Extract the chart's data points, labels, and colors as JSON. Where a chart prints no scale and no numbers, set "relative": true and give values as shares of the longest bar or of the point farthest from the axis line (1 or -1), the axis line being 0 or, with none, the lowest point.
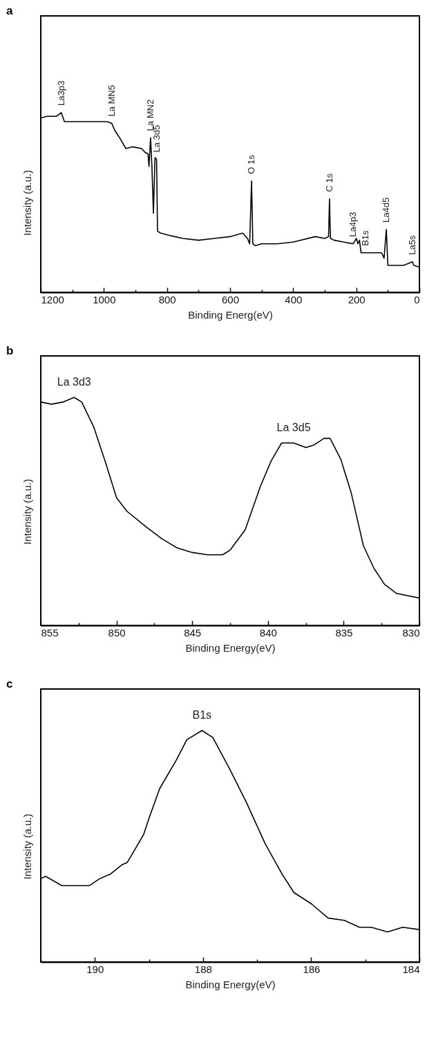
{
  "chart_data": [
    {
      "type": "line",
      "title": "a",
      "xlabel": "Binding Energ(eV)",
      "ylabel": "Intensity (a.u.)",
      "relative": true,
      "xlim": [
        1200,
        0
      ],
      "xticks": [
        1200,
        {
          "value": 1100,
          "label": null
        },
        1000,
        {
          "value": 900,
          "label": null
        },
        800,
        {
          "value": 700,
          "label": null
        },
        600,
        {
          "value": 500,
          "label": null
        },
        400,
        {
          "value": 300,
          "label": null
        },
        200,
        {
          "value": 100,
          "label": null
        },
        0
      ],
      "x": [
        1200,
        1180,
        1150,
        1135,
        1125,
        1100,
        1050,
        1010,
        990,
        975,
        965,
        950,
        930,
        910,
        880,
        870,
        860,
        857,
        852,
        848,
        843,
        838,
        833,
        830,
        820,
        800,
        750,
        700,
        650,
        600,
        560,
        545,
        538,
        532,
        528,
        520,
        500,
        450,
        400,
        330,
        300,
        288,
        285,
        282,
        270,
        240,
        210,
        200,
        195,
        190,
        185,
        170,
        150,
        120,
        112,
        105,
        100,
        80,
        50,
        22,
        18,
        0
      ],
      "series": [
        {
          "color": "#000000",
          "values": [
            0.97,
            0.98,
            0.98,
            1.0,
            0.95,
            0.95,
            0.95,
            0.95,
            0.95,
            0.94,
            0.9,
            0.86,
            0.8,
            0.81,
            0.8,
            0.78,
            0.77,
            0.7,
            0.86,
            0.71,
            0.44,
            0.75,
            0.74,
            0.34,
            0.33,
            0.32,
            0.3,
            0.29,
            0.3,
            0.31,
            0.33,
            0.3,
            0.27,
            0.62,
            0.27,
            0.26,
            0.27,
            0.27,
            0.28,
            0.31,
            0.3,
            0.31,
            0.52,
            0.3,
            0.29,
            0.28,
            0.27,
            0.3,
            0.27,
            0.29,
            0.22,
            0.22,
            0.22,
            0.22,
            0.19,
            0.35,
            0.15,
            0.15,
            0.15,
            0.17,
            0.15,
            0.14
          ]
        }
      ],
      "annotations": [
        {
          "text": "La3p3",
          "x": 1135,
          "y": 1.0
        },
        {
          "text": "La MN5",
          "x": 975,
          "y": 0.94
        },
        {
          "text": "La MN2",
          "x": 852,
          "y": 0.86
        },
        {
          "text": "La 3d5",
          "x": 833,
          "y": 0.74
        },
        {
          "text": "O 1s",
          "x": 532,
          "y": 0.62
        },
        {
          "text": "C 1s",
          "x": 285,
          "y": 0.52
        },
        {
          "text": "La4p3",
          "x": 210,
          "y": 0.27
        },
        {
          "text": "B1s",
          "x": 170,
          "y": 0.22
        },
        {
          "text": "La4d5",
          "x": 105,
          "y": 0.35
        },
        {
          "text": "La5s",
          "x": 22,
          "y": 0.17
        }
      ]
    },
    {
      "type": "line",
      "title": "b",
      "xlabel": "Binding Energy(eV)",
      "ylabel": "Intensity (a.u.)",
      "relative": true,
      "xlim": [
        855,
        830
      ],
      "xticks": [
        855,
        {
          "value": 852.5,
          "label": null
        },
        850,
        {
          "value": 847.5,
          "label": null
        },
        845,
        {
          "value": 842.5,
          "label": null
        },
        840,
        {
          "value": 837.5,
          "label": null
        },
        835,
        {
          "value": 832.5,
          "label": null
        },
        830
      ],
      "x": [
        855,
        854.3,
        853.5,
        852.8,
        852.3,
        851.5,
        850.7,
        850,
        849.3,
        848,
        847,
        846,
        845,
        844,
        843,
        842.5,
        841.5,
        840.5,
        839.8,
        839.1,
        838.3,
        837.5,
        837,
        836.3,
        835.9,
        835.2,
        834.5,
        833.7,
        833,
        832.3,
        831.5,
        830
      ],
      "series": [
        {
          "color": "#000000",
          "values": [
            0.98,
            0.97,
            0.98,
            1.0,
            0.98,
            0.87,
            0.71,
            0.56,
            0.5,
            0.43,
            0.38,
            0.34,
            0.32,
            0.31,
            0.31,
            0.33,
            0.42,
            0.61,
            0.72,
            0.8,
            0.8,
            0.78,
            0.79,
            0.82,
            0.82,
            0.73,
            0.58,
            0.35,
            0.25,
            0.18,
            0.14,
            0.12
          ]
        }
      ],
      "annotations": [
        {
          "text": "La 3d3",
          "x": 852.8,
          "y": 1.0
        },
        {
          "text": "La 3d5",
          "x": 838.3,
          "y": 0.8
        }
      ]
    },
    {
      "type": "line",
      "title": "c",
      "xlabel": "Binding Energy(eV)",
      "ylabel": "Intensity (a.u.)",
      "relative": true,
      "xlim": [
        191,
        184
      ],
      "xticks": [
        {
          "value": 191,
          "label": null
        },
        190,
        {
          "value": 189,
          "label": null
        },
        188,
        {
          "value": 187,
          "label": null
        },
        186,
        {
          "value": 185,
          "label": null
        },
        184
      ],
      "x": [
        191,
        190.91,
        190.61,
        190.41,
        190.1,
        189.91,
        189.71,
        189.5,
        189.4,
        189.1,
        189,
        188.8,
        188.5,
        188.3,
        188.02,
        187.82,
        187.5,
        187.2,
        186.85,
        186.54,
        186.32,
        185.99,
        185.69,
        185.39,
        185.11,
        184.89,
        184.59,
        184.31,
        184
      ],
      "series": [
        {
          "color": "#000000",
          "values": [
            0.36,
            0.37,
            0.33,
            0.33,
            0.33,
            0.36,
            0.38,
            0.42,
            0.43,
            0.55,
            0.62,
            0.75,
            0.87,
            0.96,
            1.0,
            0.97,
            0.83,
            0.69,
            0.51,
            0.38,
            0.3,
            0.25,
            0.19,
            0.18,
            0.15,
            0.15,
            0.13,
            0.15,
            0.14
          ]
        }
      ],
      "annotations": [
        {
          "text": "B1s",
          "x": 188.02,
          "y": 1.0
        }
      ]
    }
  ]
}
